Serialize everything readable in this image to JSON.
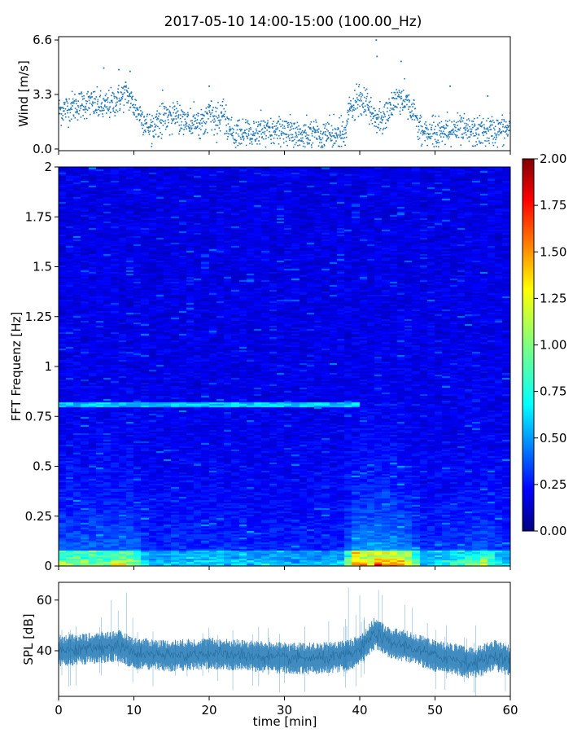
{
  "title": "2017-05-10 14:00-15:00 (100.00_Hz)",
  "chart_data": [
    {
      "type": "scatter",
      "name": "wind",
      "ylabel": "Wind [m/s]",
      "xlim": [
        0,
        60
      ],
      "ylim": [
        -0.1,
        6.8
      ],
      "yticks": [
        {
          "v": 0.0,
          "label": "0.0"
        },
        {
          "v": 3.3,
          "label": "3.3"
        },
        {
          "v": 6.6,
          "label": "6.6"
        }
      ],
      "color": "#1f77b4",
      "profile_x": [
        0,
        2,
        4,
        6,
        8,
        9,
        10,
        11,
        12,
        14,
        16,
        18,
        20,
        22,
        23,
        26,
        30,
        34,
        38,
        38.5,
        40,
        42,
        43,
        44,
        45,
        46,
        47,
        48,
        50,
        52,
        55,
        58,
        60
      ],
      "profile_y": [
        2.3,
        2.6,
        2.8,
        2.5,
        3.0,
        3.4,
        2.6,
        2.0,
        1.3,
        1.9,
        2.0,
        1.4,
        2.0,
        1.8,
        0.9,
        1.0,
        1.0,
        0.9,
        0.8,
        2.2,
        3.0,
        2.0,
        1.6,
        2.5,
        3.1,
        3.0,
        2.4,
        1.1,
        1.0,
        1.2,
        1.0,
        1.1,
        1.2
      ],
      "outliers": [
        [
          42.2,
          6.6
        ],
        [
          42.3,
          5.6
        ],
        [
          45.5,
          5.3
        ],
        [
          6,
          4.9
        ],
        [
          8,
          4.8
        ],
        [
          9.5,
          4.7
        ],
        [
          20,
          3.8
        ],
        [
          52,
          3.8
        ],
        [
          57,
          3.2
        ]
      ]
    },
    {
      "type": "heatmap",
      "name": "spectrogram",
      "ylabel": "FFT Frequenz [Hz]",
      "xlim": [
        0,
        60
      ],
      "ylim": [
        0,
        2
      ],
      "yticks": [
        {
          "v": 0,
          "label": "0"
        },
        {
          "v": 0.25,
          "label": "0.25"
        },
        {
          "v": 0.5,
          "label": "0.5"
        },
        {
          "v": 0.75,
          "label": "0.75"
        },
        {
          "v": 1,
          "label": "1"
        },
        {
          "v": 1.25,
          "label": "1.25"
        },
        {
          "v": 1.5,
          "label": "1.5"
        },
        {
          "v": 1.75,
          "label": "1.75"
        },
        {
          "v": 2,
          "label": "2"
        }
      ],
      "colorbar": {
        "range": [
          0,
          2
        ],
        "ticks": [
          "0.00",
          "0.25",
          "0.50",
          "0.75",
          "1.00",
          "1.25",
          "1.50",
          "1.75",
          "2.00"
        ],
        "colormap": "jet"
      },
      "activity_x": [
        0,
        5,
        10,
        12,
        20,
        30,
        38,
        39,
        44,
        47,
        48,
        53,
        57,
        58,
        60
      ],
      "activity_v": [
        0.55,
        0.6,
        0.65,
        0.3,
        0.35,
        0.3,
        0.3,
        0.85,
        0.9,
        0.7,
        0.3,
        0.45,
        0.6,
        0.4,
        0.3
      ],
      "band_x_range": [
        0,
        40
      ],
      "band_freq": 0.81,
      "band_level": 0.7
    },
    {
      "type": "line",
      "name": "spl",
      "ylabel": "SPL [dB]",
      "xlabel": "time [min]",
      "xlim": [
        0,
        60
      ],
      "ylim": [
        22,
        67
      ],
      "yticks": [
        {
          "v": 40,
          "label": "40"
        },
        {
          "v": 60,
          "label": "60"
        }
      ],
      "xticks": [
        {
          "v": 0,
          "label": "0"
        },
        {
          "v": 10,
          "label": "10"
        },
        {
          "v": 20,
          "label": "20"
        },
        {
          "v": 30,
          "label": "30"
        },
        {
          "v": 40,
          "label": "40"
        },
        {
          "v": 50,
          "label": "50"
        },
        {
          "v": 60,
          "label": "60"
        }
      ],
      "color": "#1f77b4",
      "mean_x": [
        0,
        5,
        8,
        10,
        15,
        20,
        25,
        30,
        35,
        38,
        40,
        42,
        44,
        46,
        48,
        50,
        52,
        55,
        58,
        60
      ],
      "mean_y": [
        40,
        41,
        42,
        39,
        38,
        39,
        38,
        37,
        37,
        38,
        40,
        47,
        43,
        42,
        40,
        38,
        37,
        35,
        38,
        36
      ],
      "spread": 4.5,
      "peaks": [
        [
          38.5,
          65
        ],
        [
          40,
          62
        ],
        [
          42.5,
          64
        ],
        [
          43,
          62
        ],
        [
          7,
          60
        ],
        [
          9,
          63
        ],
        [
          46,
          58
        ],
        [
          47,
          57
        ]
      ]
    }
  ]
}
